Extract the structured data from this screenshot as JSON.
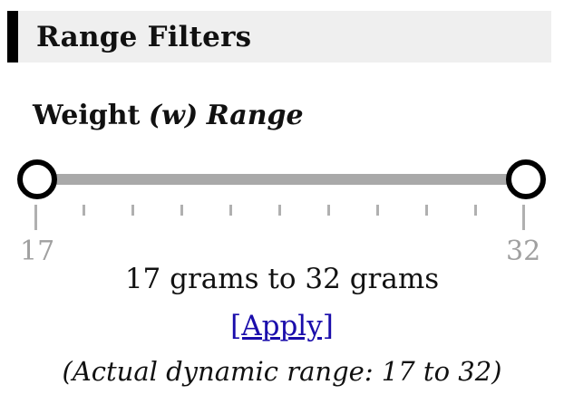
{
  "header": {
    "title": "Range Filters"
  },
  "filter": {
    "label_main": "Weight",
    "label_var": "(w)",
    "label_suffix": "Range",
    "min_label": "17",
    "max_label": "32",
    "min_value": 17,
    "max_value": 32,
    "selected_min": 17,
    "selected_max": 32,
    "summary_text": "17 grams to 32 grams",
    "apply_label": "[Apply]",
    "actual_range_text": "(Actual dynamic range: 17 to 32)"
  },
  "colors": {
    "header_bg": "#efefef",
    "header_bar": "#000000",
    "track": "#a9a9a9",
    "tick": "#b0b0b0",
    "tick_label": "#a0a0a0",
    "link": "#1a0dab"
  }
}
